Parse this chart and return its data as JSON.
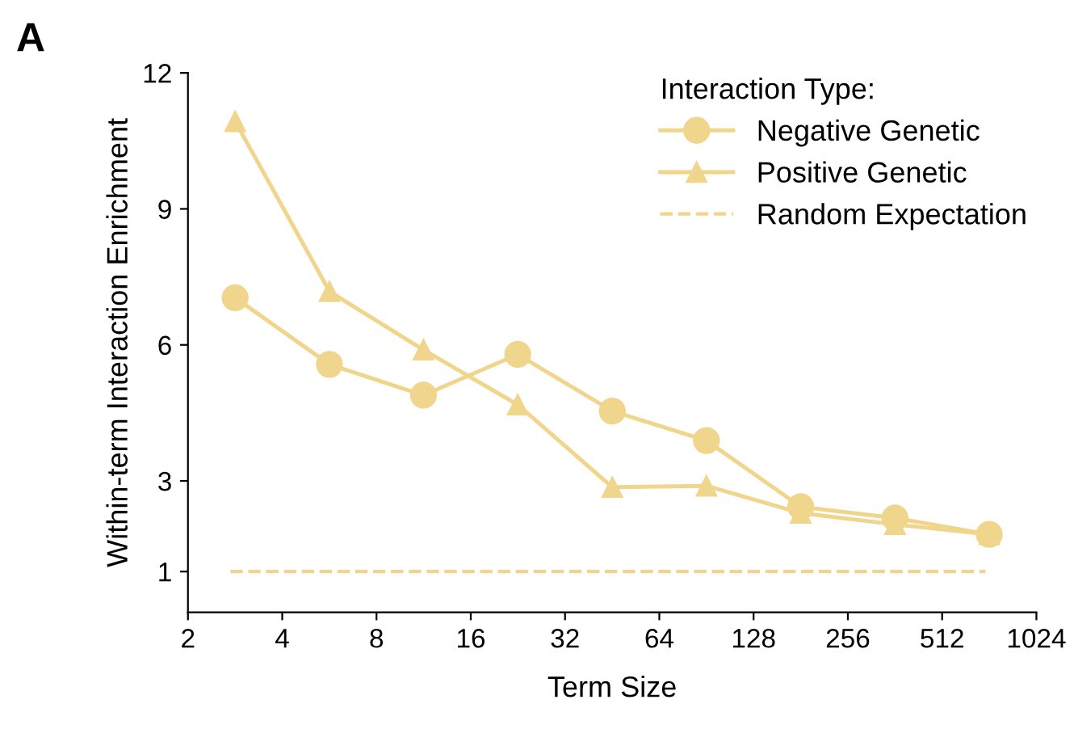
{
  "chart_data": {
    "type": "line",
    "xlabel": "Term Size",
    "ylabel": "Within-term Interaction Enrichment",
    "legend_title": "Interaction Type:",
    "annotations": [
      "A"
    ],
    "log": "x",
    "x": [
      2.83,
      5.66,
      11.3,
      22.6,
      45.3,
      90.5,
      181,
      362,
      724
    ],
    "series": [
      {
        "name": "Negative Genetic",
        "color": "#f0d68c",
        "marker": "circle",
        "values": [
          7.04,
          5.57,
          4.89,
          5.79,
          4.54,
          3.89,
          2.43,
          2.18,
          1.82
        ]
      },
      {
        "name": "Positive Genetic",
        "color": "#f0d68c",
        "marker": "triangle",
        "values": [
          10.93,
          7.18,
          5.89,
          4.68,
          2.86,
          2.89,
          2.29,
          2.04,
          1.82
        ]
      }
    ],
    "ref_lines": [
      {
        "axis": "y",
        "value": 1,
        "label": "Random Expectation",
        "color": "#f0d68c",
        "line_style": "dashed"
      }
    ],
    "xlim": [
      2,
      1024
    ],
    "xticks": [
      2,
      4,
      8,
      16,
      32,
      64,
      128,
      256,
      512,
      1024
    ],
    "ylim": [
      0.1,
      12
    ],
    "yticks": [
      1,
      3,
      6,
      9,
      12
    ],
    "grid": false,
    "legend": "top right",
    "line_style": "solid"
  }
}
